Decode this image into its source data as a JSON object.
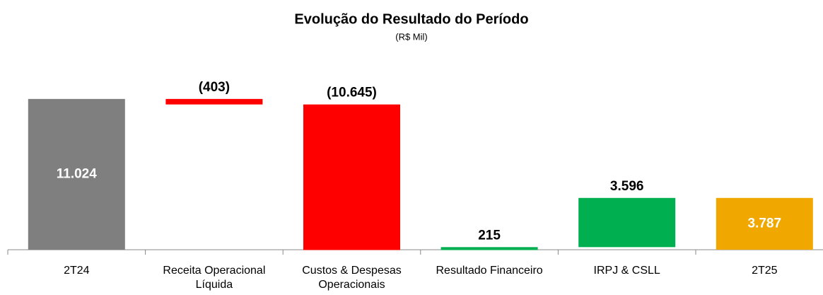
{
  "chart_data": {
    "type": "waterfall",
    "title": "Evolução do Resultado do Período",
    "subtitle": "(R$ Mil)",
    "categories": [
      "2T24",
      "Receita Operacional Líquida",
      "Custos & Despesas Operacionais",
      "Resultado Financeiro",
      "IRPJ & CSLL",
      "2T25"
    ],
    "values": [
      11024,
      -403,
      -10645,
      215,
      3596,
      3787
    ],
    "value_labels": [
      "11.024",
      "(403)",
      "(10.645)",
      "215",
      "3.596",
      "3.787"
    ],
    "colors": [
      "#7f7f7f",
      "#ff0000",
      "#ff0000",
      "#00b050",
      "#00b050",
      "#f0a800"
    ],
    "ylim": [
      0,
      12000
    ]
  }
}
